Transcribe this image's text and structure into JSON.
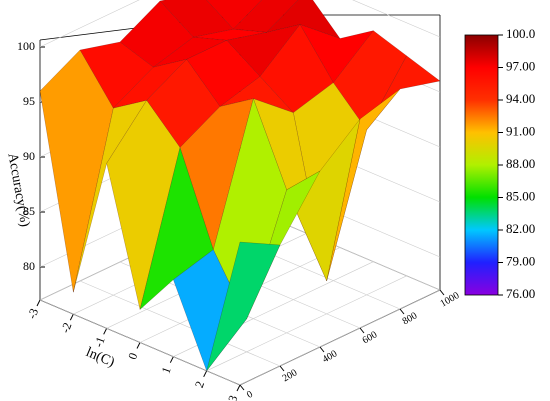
{
  "chart_data": {
    "type": "surface",
    "zlabel": "Accuracy(%)",
    "xlabel": "ln(C)",
    "x": [
      -3,
      -2,
      -1,
      0,
      1,
      2,
      3
    ],
    "y": [
      0,
      200,
      400,
      600,
      800,
      1000
    ],
    "values": [
      [
        96,
        79,
        92,
        80,
        84,
        77,
        90
      ],
      [
        98,
        94,
        96,
        93,
        85,
        80,
        88
      ],
      [
        97,
        96,
        98,
        95,
        97,
        90,
        93
      ],
      [
        99,
        97,
        98,
        96,
        94,
        80,
        96
      ],
      [
        98,
        96,
        97,
        99,
        95,
        92,
        97
      ],
      [
        97,
        98,
        99,
        96,
        98,
        97,
        96
      ]
    ],
    "xlim": [
      -3,
      3
    ],
    "xticks": [
      -3,
      -2,
      -1,
      0,
      1,
      2,
      3
    ],
    "ylim": [
      0,
      1000
    ],
    "yticks": [
      0,
      200,
      400,
      600,
      800,
      1000
    ],
    "zlim": [
      77,
      100
    ],
    "zticks": [
      80,
      85,
      90,
      95,
      100
    ],
    "colorbar": {
      "lim": [
        76,
        100
      ],
      "colors": [
        "#8a00e0",
        "#2020ff",
        "#00c8ff",
        "#00e000",
        "#b0f000",
        "#ffc000",
        "#ff3000",
        "#ff0000",
        "#8b0000"
      ],
      "ticks": [
        {
          "value": 100,
          "label": "100.0"
        },
        {
          "value": 97,
          "label": "97.00"
        },
        {
          "value": 94,
          "label": "94.00"
        },
        {
          "value": 91,
          "label": "91.00"
        },
        {
          "value": 88,
          "label": "88.00"
        },
        {
          "value": 85,
          "label": "85.00"
        },
        {
          "value": 82,
          "label": "82.00"
        },
        {
          "value": 79,
          "label": "79.00"
        },
        {
          "value": 76,
          "label": "76.00"
        }
      ]
    }
  }
}
